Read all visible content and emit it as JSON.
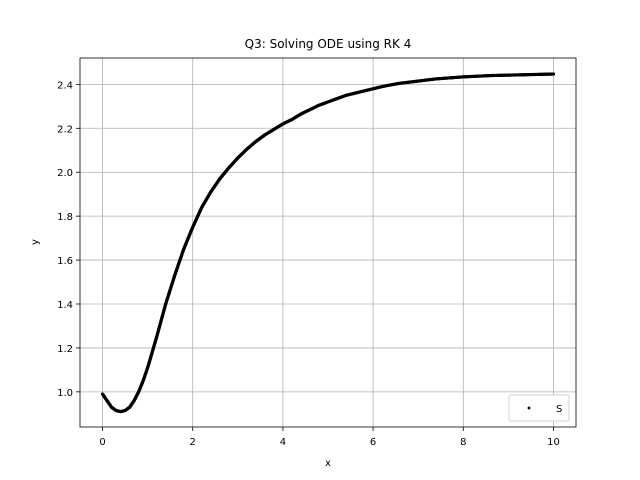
{
  "chart_data": {
    "type": "scatter",
    "title": "Q3: Solving ODE using RK 4",
    "xlabel": "x",
    "ylabel": "y",
    "xlim": [
      -0.5,
      10.5
    ],
    "ylim": [
      0.84,
      2.52
    ],
    "xticks": [
      0,
      2,
      4,
      6,
      8,
      10
    ],
    "xtick_labels": [
      "0",
      "2",
      "4",
      "6",
      "8",
      "10"
    ],
    "yticks": [
      1.0,
      1.2,
      1.4,
      1.6,
      1.8,
      2.0,
      2.2,
      2.4
    ],
    "ytick_labels": [
      "1.0",
      "1.2",
      "1.4",
      "1.6",
      "1.8",
      "2.0",
      "2.2",
      "2.4"
    ],
    "grid": true,
    "legend_position": "lower-right",
    "series_color": "#000000",
    "series": [
      {
        "name": "S",
        "x": [
          0.0,
          0.1,
          0.2,
          0.3,
          0.4,
          0.5,
          0.6,
          0.7,
          0.8,
          0.9,
          1.0,
          1.2,
          1.4,
          1.6,
          1.8,
          2.0,
          2.2,
          2.4,
          2.6,
          2.8,
          3.0,
          3.2,
          3.4,
          3.6,
          3.8,
          4.0,
          4.2,
          4.4,
          4.6,
          4.8,
          5.0,
          5.2,
          5.4,
          5.6,
          5.8,
          6.0,
          6.2,
          6.4,
          6.6,
          6.8,
          7.0,
          7.2,
          7.4,
          7.6,
          7.8,
          8.0,
          8.2,
          8.4,
          8.6,
          8.8,
          9.0,
          9.2,
          9.4,
          9.6,
          9.8,
          10.0
        ],
        "y": [
          0.99,
          0.96,
          0.93,
          0.915,
          0.91,
          0.915,
          0.93,
          0.96,
          1.0,
          1.05,
          1.11,
          1.25,
          1.4,
          1.53,
          1.65,
          1.75,
          1.84,
          1.91,
          1.97,
          2.02,
          2.065,
          2.105,
          2.14,
          2.17,
          2.195,
          2.22,
          2.24,
          2.265,
          2.285,
          2.305,
          2.32,
          2.335,
          2.35,
          2.36,
          2.37,
          2.38,
          2.39,
          2.398,
          2.405,
          2.41,
          2.415,
          2.42,
          2.425,
          2.428,
          2.431,
          2.434,
          2.436,
          2.438,
          2.44,
          2.441,
          2.442,
          2.443,
          2.444,
          2.445,
          2.446,
          2.447
        ]
      }
    ]
  }
}
